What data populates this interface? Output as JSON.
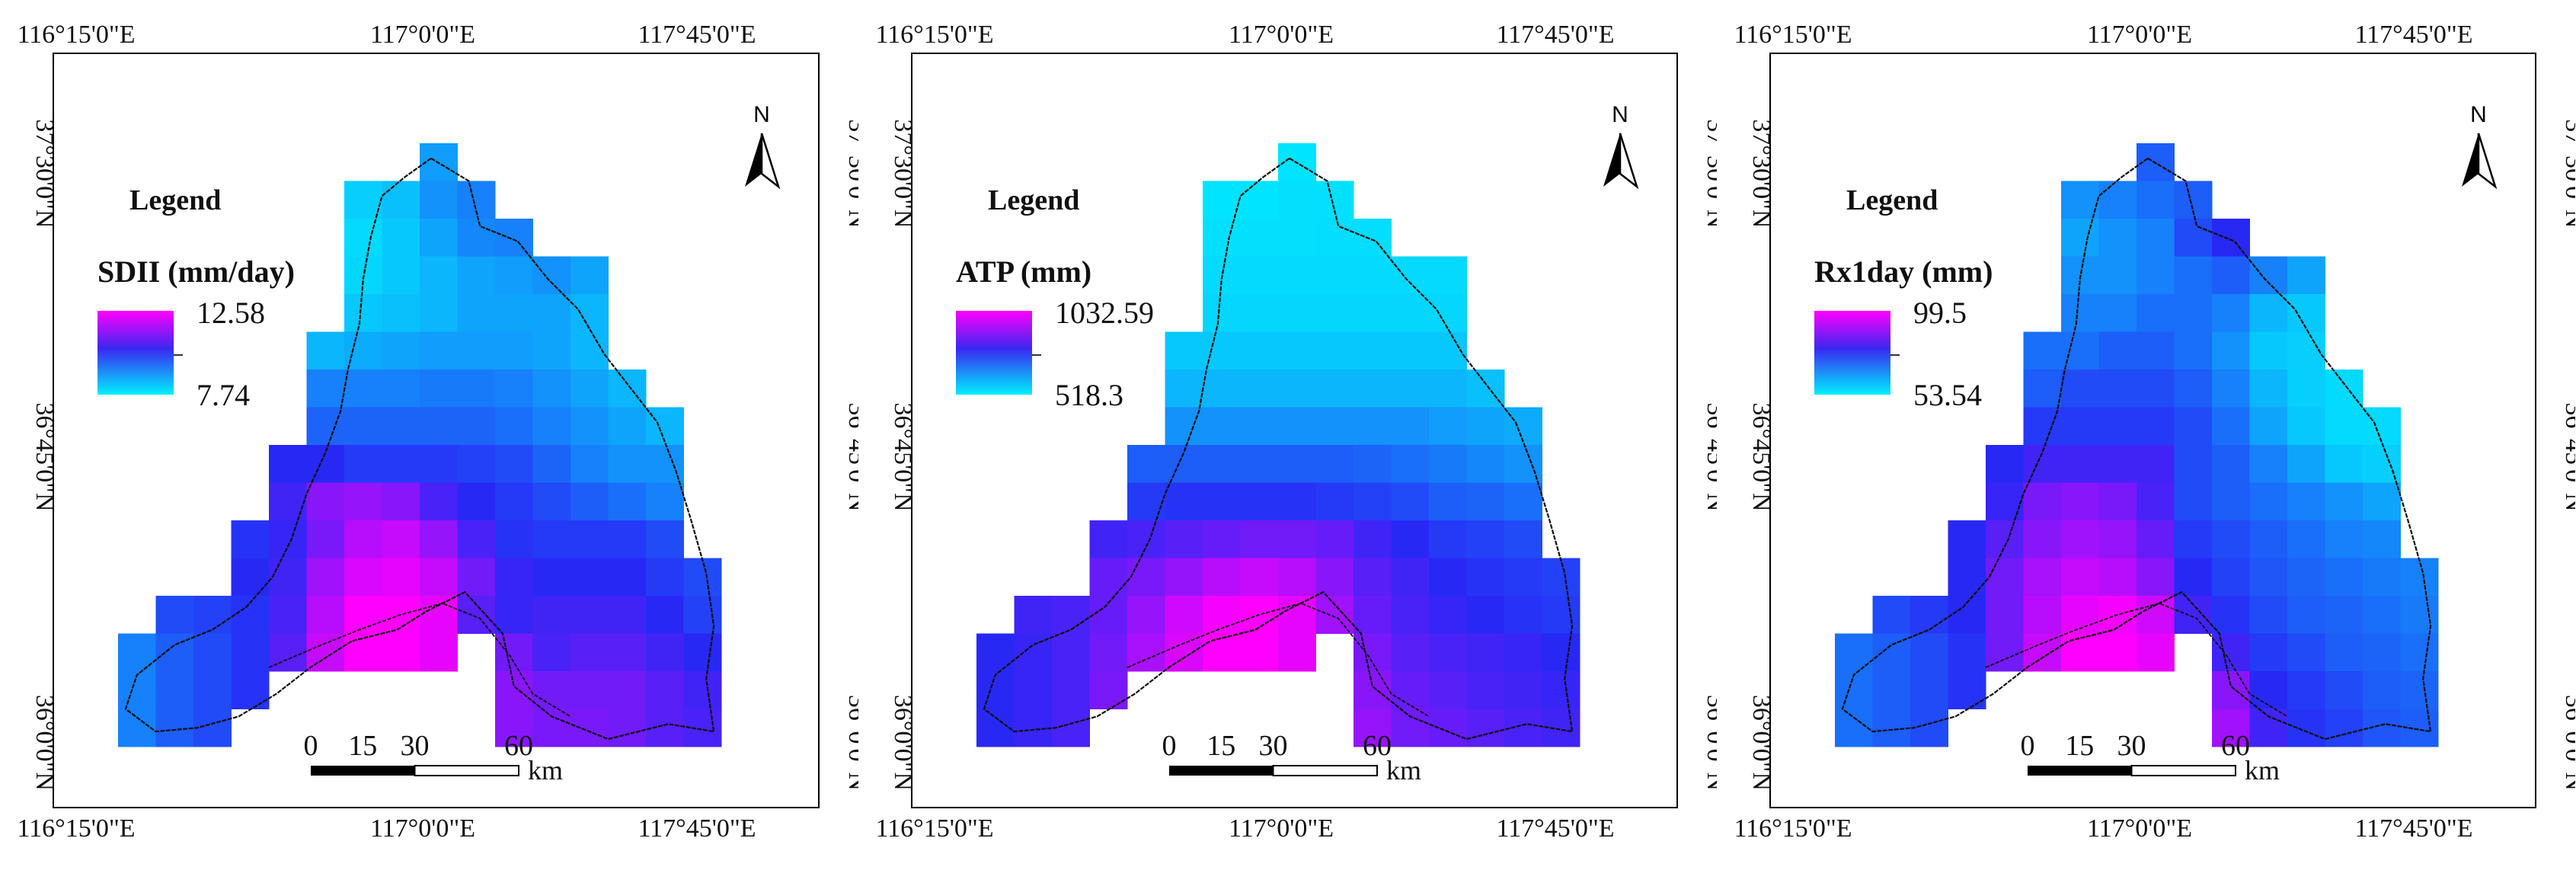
{
  "panels": [
    {
      "id": "sdii",
      "legend_title": "Legend",
      "variable": "SDII (mm/day)",
      "max_label": "12.58",
      "min_label": "7.74",
      "north": "N",
      "scale_ticks": [
        "0",
        "15",
        "30",
        "60"
      ],
      "scale_unit": "km",
      "lon_labels": [
        "116°15'0\"E",
        "117°0'0\"E",
        "117°45'0\"E"
      ],
      "lat_labels": [
        "37°30'0\"N",
        "36°45'0\"N",
        "36°0'0\"N"
      ],
      "pattern": [
        "........u.......",
        "......xxxx......",
        "......xxxxx.....",
        "......xxxxxxx...",
        "......xxxxxxx...",
        ".....xxxxxxxx...",
        ".....xxxxxxxxx..",
        ".....xxxxxxxxxx.",
        "....xxxxxxxxxxx.",
        "....xxxxxxxxxxx.",
        "...xxxxxxxxxxxx.",
        "...xxxxxxxxxxxxx",
        ".xxxxxxxxxxxxxxx",
        "xxxxxxxxx.xxxxxx",
        "xxxx......xxxxxx",
        "xxx.......xxxxxx"
      ],
      "values": [
        [
          0,
          0,
          0,
          0,
          0,
          0,
          0,
          0,
          0.22,
          0,
          0,
          0,
          0,
          0,
          0,
          0
        ],
        [
          0,
          0,
          0,
          0,
          0,
          0,
          0.08,
          0.12,
          0.25,
          0.3,
          0,
          0,
          0,
          0,
          0,
          0
        ],
        [
          0,
          0,
          0,
          0,
          0,
          0,
          0.05,
          0.1,
          0.2,
          0.28,
          0.3,
          0,
          0,
          0,
          0,
          0
        ],
        [
          0,
          0,
          0,
          0,
          0,
          0,
          0.06,
          0.1,
          0.15,
          0.2,
          0.22,
          0.25,
          0.2,
          0,
          0,
          0
        ],
        [
          0,
          0,
          0,
          0,
          0,
          0,
          0.1,
          0.12,
          0.15,
          0.2,
          0.2,
          0.2,
          0.15,
          0,
          0,
          0
        ],
        [
          0,
          0,
          0,
          0,
          0,
          0.15,
          0.18,
          0.2,
          0.22,
          0.22,
          0.22,
          0.2,
          0.15,
          0,
          0,
          0
        ],
        [
          0,
          0,
          0,
          0,
          0,
          0.3,
          0.3,
          0.3,
          0.32,
          0.32,
          0.3,
          0.25,
          0.2,
          0.15,
          0,
          0
        ],
        [
          0,
          0,
          0,
          0,
          0,
          0.38,
          0.38,
          0.38,
          0.38,
          0.38,
          0.35,
          0.3,
          0.25,
          0.2,
          0.15,
          0
        ],
        [
          0,
          0,
          0,
          0,
          0.55,
          0.55,
          0.5,
          0.5,
          0.5,
          0.48,
          0.45,
          0.38,
          0.3,
          0.25,
          0.25,
          0
        ],
        [
          0,
          0,
          0,
          0,
          0.6,
          0.75,
          0.78,
          0.75,
          0.62,
          0.55,
          0.5,
          0.45,
          0.4,
          0.35,
          0.3,
          0
        ],
        [
          0,
          0,
          0,
          0.52,
          0.58,
          0.72,
          0.85,
          0.88,
          0.78,
          0.62,
          0.52,
          0.5,
          0.5,
          0.5,
          0.45,
          0
        ],
        [
          0,
          0,
          0,
          0.55,
          0.6,
          0.8,
          0.92,
          0.95,
          0.88,
          0.7,
          0.58,
          0.55,
          0.55,
          0.55,
          0.5,
          0.45
        ],
        [
          0,
          0.45,
          0.48,
          0.52,
          0.62,
          0.85,
          1.0,
          1.0,
          0.95,
          0.65,
          0.58,
          0.6,
          0.6,
          0.6,
          0.55,
          0.48
        ],
        [
          0.3,
          0.4,
          0.45,
          0.52,
          0.65,
          0.88,
          1.0,
          1.0,
          0.95,
          0,
          0.7,
          0.62,
          0.65,
          0.65,
          0.6,
          0.55
        ],
        [
          0.3,
          0.4,
          0.45,
          0.52,
          0,
          0,
          0,
          0,
          0,
          0,
          0.75,
          0.7,
          0.7,
          0.7,
          0.65,
          0.6
        ],
        [
          0.3,
          0.4,
          0.45,
          0,
          0,
          0,
          0,
          0,
          0,
          0,
          0.75,
          0.72,
          0.72,
          0.7,
          0.65,
          0.62
        ]
      ]
    },
    {
      "id": "atp",
      "legend_title": "Legend",
      "variable": "ATP (mm)",
      "max_label": "1032.59",
      "min_label": "518.3",
      "north": "N",
      "scale_ticks": [
        "0",
        "15",
        "30",
        "60"
      ],
      "scale_unit": "km",
      "lon_labels": [
        "116°15'0\"E",
        "117°0'0\"E",
        "117°45'0\"E"
      ],
      "lat_labels": [
        "37°30'0\"N",
        "36°45'0\"N",
        "36°0'0\"N"
      ],
      "pattern": [
        "........u.......",
        "......xxxx......",
        "......xxxxx.....",
        "......xxxxxxx...",
        "......xxxxxxx...",
        ".....xxxxxxxx...",
        ".....xxxxxxxxx..",
        ".....xxxxxxxxxx.",
        "....xxxxxxxxxxx.",
        "....xxxxxxxxxxx.",
        "...xxxxxxxxxxxx.",
        "...xxxxxxxxxxxxx",
        ".xxxxxxxxxxxxxxx",
        "xxxxxxxxx.xxxxxx",
        "xxxx......xxxxxx",
        "xxx.......xxxxxx"
      ],
      "values": [
        [
          0,
          0,
          0,
          0,
          0,
          0,
          0,
          0,
          0.02,
          0,
          0,
          0,
          0,
          0,
          0,
          0
        ],
        [
          0,
          0,
          0,
          0,
          0,
          0,
          0.02,
          0.02,
          0.03,
          0.03,
          0,
          0,
          0,
          0,
          0,
          0
        ],
        [
          0,
          0,
          0,
          0,
          0,
          0,
          0.03,
          0.03,
          0.03,
          0.04,
          0.04,
          0,
          0,
          0,
          0,
          0
        ],
        [
          0,
          0,
          0,
          0,
          0,
          0,
          0.05,
          0.05,
          0.05,
          0.05,
          0.05,
          0.05,
          0.05,
          0,
          0,
          0
        ],
        [
          0,
          0,
          0,
          0,
          0,
          0,
          0.06,
          0.06,
          0.06,
          0.06,
          0.06,
          0.06,
          0.06,
          0,
          0,
          0
        ],
        [
          0,
          0,
          0,
          0,
          0,
          0.1,
          0.1,
          0.1,
          0.1,
          0.1,
          0.1,
          0.1,
          0.1,
          0,
          0,
          0
        ],
        [
          0,
          0,
          0,
          0,
          0,
          0.15,
          0.15,
          0.15,
          0.15,
          0.15,
          0.15,
          0.15,
          0.15,
          0.12,
          0,
          0
        ],
        [
          0,
          0,
          0,
          0,
          0,
          0.25,
          0.25,
          0.25,
          0.25,
          0.25,
          0.25,
          0.25,
          0.22,
          0.2,
          0.18,
          0
        ],
        [
          0,
          0,
          0,
          0,
          0.4,
          0.4,
          0.4,
          0.4,
          0.4,
          0.4,
          0.38,
          0.35,
          0.32,
          0.28,
          0.25,
          0
        ],
        [
          0,
          0,
          0,
          0,
          0.5,
          0.52,
          0.52,
          0.52,
          0.52,
          0.5,
          0.48,
          0.45,
          0.4,
          0.38,
          0.35,
          0
        ],
        [
          0,
          0,
          0,
          0.6,
          0.62,
          0.65,
          0.68,
          0.7,
          0.7,
          0.68,
          0.6,
          0.55,
          0.5,
          0.48,
          0.45,
          0
        ],
        [
          0,
          0,
          0,
          0.68,
          0.72,
          0.78,
          0.85,
          0.88,
          0.85,
          0.75,
          0.65,
          0.6,
          0.55,
          0.52,
          0.5,
          0.48
        ],
        [
          0,
          0.6,
          0.62,
          0.68,
          0.78,
          0.9,
          0.98,
          1.0,
          0.95,
          0.8,
          0.68,
          0.62,
          0.58,
          0.55,
          0.52,
          0.5
        ],
        [
          0.55,
          0.58,
          0.62,
          0.7,
          0.82,
          0.92,
          1.0,
          1.0,
          0.95,
          0,
          0.72,
          0.65,
          0.62,
          0.6,
          0.58,
          0.55
        ],
        [
          0.55,
          0.58,
          0.62,
          0.72,
          0,
          0,
          0,
          0,
          0,
          0,
          0.75,
          0.68,
          0.65,
          0.62,
          0.6,
          0.58
        ],
        [
          0.55,
          0.58,
          0.62,
          0,
          0,
          0,
          0,
          0,
          0,
          0,
          0.78,
          0.7,
          0.68,
          0.65,
          0.62,
          0.6
        ]
      ]
    },
    {
      "id": "rx1day",
      "legend_title": "Legend",
      "variable": "Rx1day (mm)",
      "max_label": "99.5",
      "min_label": "53.54",
      "north": "N",
      "scale_ticks": [
        "0",
        "15",
        "30",
        "60"
      ],
      "scale_unit": "km",
      "lon_labels": [
        "116°15'0\"E",
        "117°0'0\"E",
        "117°45'0\"E"
      ],
      "lat_labels": [
        "37°30'0\"N",
        "36°45'0\"N",
        "36°0'0\"N"
      ],
      "pattern": [
        "........u.......",
        "......xxxx......",
        "......xxxxx.....",
        "......xxxxxxx...",
        "......xxxxxxx...",
        ".....xxxxxxxx...",
        ".....xxxxxxxxx..",
        ".....xxxxxxxxxx.",
        "....xxxxxxxxxxx.",
        "....xxxxxxxxxxx.",
        "...xxxxxxxxxxxx.",
        "...xxxxxxxxxxxxx",
        ".xxxxxxxxxxxxxxx",
        "xxxxxxxxx.xxxxxx",
        "xxxx......xxxxxx",
        "xxx.......xxxxxx"
      ],
      "values": [
        [
          0,
          0,
          0,
          0,
          0,
          0,
          0,
          0,
          0.4,
          0,
          0,
          0,
          0,
          0,
          0,
          0
        ],
        [
          0,
          0,
          0,
          0,
          0,
          0,
          0.25,
          0.3,
          0.35,
          0.4,
          0,
          0,
          0,
          0,
          0,
          0
        ],
        [
          0,
          0,
          0,
          0,
          0,
          0,
          0.2,
          0.25,
          0.3,
          0.45,
          0.55,
          0,
          0,
          0,
          0,
          0
        ],
        [
          0,
          0,
          0,
          0,
          0,
          0,
          0.25,
          0.25,
          0.3,
          0.35,
          0.4,
          0.3,
          0.2,
          0,
          0,
          0
        ],
        [
          0,
          0,
          0,
          0,
          0,
          0,
          0.3,
          0.3,
          0.35,
          0.35,
          0.3,
          0.15,
          0.1,
          0,
          0,
          0
        ],
        [
          0,
          0,
          0,
          0,
          0,
          0.35,
          0.35,
          0.4,
          0.4,
          0.35,
          0.25,
          0.1,
          0.08,
          0,
          0,
          0
        ],
        [
          0,
          0,
          0,
          0,
          0,
          0.4,
          0.45,
          0.45,
          0.45,
          0.4,
          0.3,
          0.15,
          0.08,
          0.05,
          0,
          0
        ],
        [
          0,
          0,
          0,
          0,
          0,
          0.5,
          0.5,
          0.5,
          0.5,
          0.45,
          0.35,
          0.2,
          0.1,
          0.05,
          0.05,
          0
        ],
        [
          0,
          0,
          0,
          0,
          0.55,
          0.6,
          0.6,
          0.6,
          0.6,
          0.45,
          0.4,
          0.3,
          0.2,
          0.1,
          0.08,
          0
        ],
        [
          0,
          0,
          0,
          0,
          0.58,
          0.72,
          0.75,
          0.72,
          0.62,
          0.45,
          0.4,
          0.35,
          0.3,
          0.25,
          0.2,
          0
        ],
        [
          0,
          0,
          0,
          0.55,
          0.65,
          0.75,
          0.8,
          0.78,
          0.68,
          0.5,
          0.45,
          0.4,
          0.35,
          0.3,
          0.28,
          0
        ],
        [
          0,
          0,
          0,
          0.55,
          0.7,
          0.82,
          0.88,
          0.85,
          0.75,
          0.55,
          0.48,
          0.42,
          0.38,
          0.35,
          0.32,
          0.3
        ],
        [
          0,
          0.45,
          0.5,
          0.55,
          0.7,
          0.85,
          0.95,
          0.98,
          0.9,
          0.6,
          0.52,
          0.45,
          0.4,
          0.38,
          0.35,
          0.32
        ],
        [
          0.35,
          0.4,
          0.45,
          0.52,
          0.7,
          0.88,
          1.0,
          1.0,
          0.95,
          0,
          0.6,
          0.5,
          0.45,
          0.4,
          0.38,
          0.35
        ],
        [
          0.35,
          0.4,
          0.45,
          0.52,
          0,
          0,
          0,
          0,
          0,
          0,
          0.75,
          0.55,
          0.5,
          0.45,
          0.4,
          0.38
        ],
        [
          0.35,
          0.4,
          0.45,
          0,
          0,
          0,
          0,
          0,
          0,
          0,
          0.8,
          0.6,
          0.52,
          0.48,
          0.42,
          0.4
        ]
      ]
    }
  ]
}
